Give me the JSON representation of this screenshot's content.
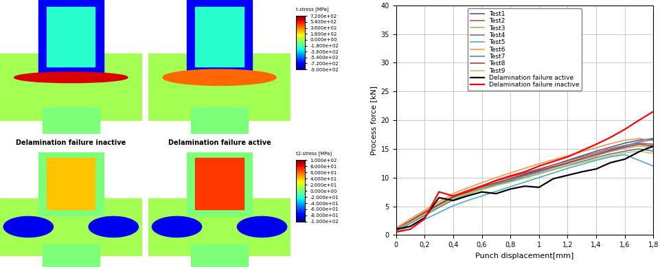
{
  "chart_data": {
    "type": "line",
    "x_label": "Punch displacement[mm]",
    "y_label": "Process force [kN]",
    "x": [
      0,
      0.1,
      0.2,
      0.3,
      0.4,
      0.5,
      0.6,
      0.7,
      0.8,
      0.9,
      1,
      1.1,
      1.2,
      1.3,
      1.4,
      1.5,
      1.6,
      1.7,
      1.8
    ],
    "xlim": [
      0,
      1.8
    ],
    "xticks": [
      0,
      {
        "value": 0.2,
        "label": "0,2"
      },
      {
        "value": 0.4,
        "label": "0,4"
      },
      {
        "value": 0.6,
        "label": "0,6"
      },
      {
        "value": 0.8,
        "label": "0,8"
      },
      1,
      {
        "value": 1.2,
        "label": "1,2"
      },
      {
        "value": 1.4,
        "label": "1,4"
      },
      {
        "value": 1.6,
        "label": "1,6"
      },
      {
        "value": 1.8,
        "label": "1,8"
      }
    ],
    "ylim": [
      0,
      40
    ],
    "yticks": [
      0,
      5,
      10,
      15,
      20,
      25,
      30,
      35,
      40
    ],
    "grid": true,
    "legend": "upper center",
    "series": [
      {
        "name": "Test1",
        "color": "#3a5f9a",
        "values": [
          0.8,
          2.2,
          3.7,
          5.0,
          6.3,
          7.3,
          8.2,
          9.0,
          9.8,
          10.6,
          11.4,
          12.2,
          13.0,
          13.8,
          14.6,
          15.3,
          16.0,
          16.5,
          16.8
        ]
      },
      {
        "name": "Test2",
        "color": "#c0504d",
        "values": [
          1.0,
          2.5,
          4.0,
          5.4,
          6.8,
          7.8,
          8.6,
          9.4,
          10.1,
          10.8,
          11.5,
          12.2,
          12.9,
          13.6,
          14.3,
          15.0,
          15.6,
          16.0,
          15.8
        ]
      },
      {
        "name": "Test3",
        "color": "#9bbb59",
        "values": [
          0.9,
          2.3,
          3.8,
          5.2,
          6.5,
          7.4,
          8.2,
          8.9,
          9.6,
          10.3,
          11.0,
          11.7,
          12.4,
          13.1,
          13.8,
          14.5,
          15.1,
          15.5,
          15.2
        ]
      },
      {
        "name": "Test4",
        "color": "#8064a2",
        "values": [
          0.7,
          2.0,
          3.4,
          4.8,
          6.1,
          7.1,
          7.9,
          8.6,
          9.3,
          10.0,
          10.7,
          11.4,
          12.1,
          12.8,
          13.5,
          14.1,
          14.6,
          15.0,
          14.6
        ]
      },
      {
        "name": "Test5",
        "color": "#4bacc6",
        "values": [
          0.5,
          1.5,
          2.7,
          3.9,
          5.1,
          6.0,
          6.8,
          7.6,
          8.4,
          9.2,
          10.0,
          10.8,
          11.6,
          12.3,
          13.0,
          13.6,
          14.0,
          13.0,
          12.0
        ]
      },
      {
        "name": "Test6",
        "color": "#f79646",
        "values": [
          1.2,
          2.8,
          4.3,
          5.8,
          7.2,
          8.2,
          9.1,
          10.0,
          10.8,
          11.6,
          12.4,
          13.1,
          13.8,
          14.5,
          15.2,
          15.9,
          16.5,
          16.8,
          16.5
        ]
      },
      {
        "name": "Test7",
        "color": "#4f81bd",
        "values": [
          0.8,
          2.1,
          3.5,
          4.9,
          6.2,
          7.2,
          8.0,
          8.8,
          9.5,
          10.3,
          11.0,
          11.8,
          12.5,
          13.3,
          14.0,
          14.8,
          15.5,
          16.2,
          16.6
        ]
      },
      {
        "name": "Test8",
        "color": "#a33c3a",
        "values": [
          1.0,
          2.4,
          3.9,
          5.3,
          6.6,
          7.6,
          8.4,
          9.1,
          9.8,
          10.5,
          11.2,
          11.9,
          12.6,
          13.3,
          14.0,
          14.7,
          15.3,
          15.8,
          15.5
        ]
      },
      {
        "name": "Test9",
        "color": "#b2d068",
        "values": [
          0.9,
          2.2,
          3.6,
          5.0,
          6.3,
          7.2,
          7.9,
          8.6,
          9.2,
          9.9,
          10.6,
          11.3,
          12.0,
          12.6,
          13.2,
          13.8,
          14.3,
          14.6,
          14.2
        ]
      },
      {
        "name": "Delamination failure active",
        "color": "#000000",
        "values": [
          1.0,
          1.5,
          3.0,
          6.5,
          6.0,
          6.8,
          7.5,
          7.2,
          8.0,
          8.5,
          8.3,
          9.8,
          10.4,
          11.0,
          11.5,
          12.6,
          13.2,
          14.5,
          15.5
        ]
      },
      {
        "name": "Delamination failure inactive",
        "color": "#ff0000",
        "values": [
          0.5,
          1.0,
          2.8,
          7.5,
          6.8,
          7.5,
          8.5,
          9.5,
          10.3,
          11.0,
          12.0,
          12.8,
          13.6,
          14.7,
          15.8,
          17.0,
          18.4,
          20.0,
          21.5
        ]
      }
    ]
  },
  "simulation": {
    "panel_labels": [
      "Delamination failure inactive",
      "Delamination failure active"
    ],
    "colorbars": [
      {
        "title": "t-stress [MPa]",
        "range": [
          -900,
          720
        ],
        "ticks": [
          {
            "value": 720,
            "label": "7.200e+02"
          },
          {
            "value": 540,
            "label": "5.400e+02"
          },
          {
            "value": 360,
            "label": "3.600e+02"
          },
          {
            "value": 180,
            "label": "1.800e+02"
          },
          {
            "value": 0,
            "label": "0.000e+00"
          },
          {
            "value": -180,
            "label": "-1.800e+02"
          },
          {
            "value": -360,
            "label": "-3.600e+02"
          },
          {
            "value": -540,
            "label": "-5.400e+02"
          },
          {
            "value": -720,
            "label": "-7.200e+02"
          },
          {
            "value": -900,
            "label": "-9.000e+02"
          }
        ]
      },
      {
        "title": "t2-stress [MPa]",
        "range": [
          -100,
          100
        ],
        "ticks": [
          {
            "value": 100,
            "label": "1.000e+02"
          },
          {
            "value": 80,
            "label": "8.000e+01"
          },
          {
            "value": 60,
            "label": "6.000e+01"
          },
          {
            "value": 40,
            "label": "4.000e+01"
          },
          {
            "value": 20,
            "label": "2.000e+01"
          },
          {
            "value": 0,
            "label": "0.000e+00"
          },
          {
            "value": -20,
            "label": "-2.000e+01"
          },
          {
            "value": -40,
            "label": "-4.000e+01"
          },
          {
            "value": -60,
            "label": "-6.000e+01"
          },
          {
            "value": -80,
            "label": "-8.000e+01"
          },
          {
            "value": -100,
            "label": "-1.000e+02"
          }
        ]
      }
    ]
  }
}
